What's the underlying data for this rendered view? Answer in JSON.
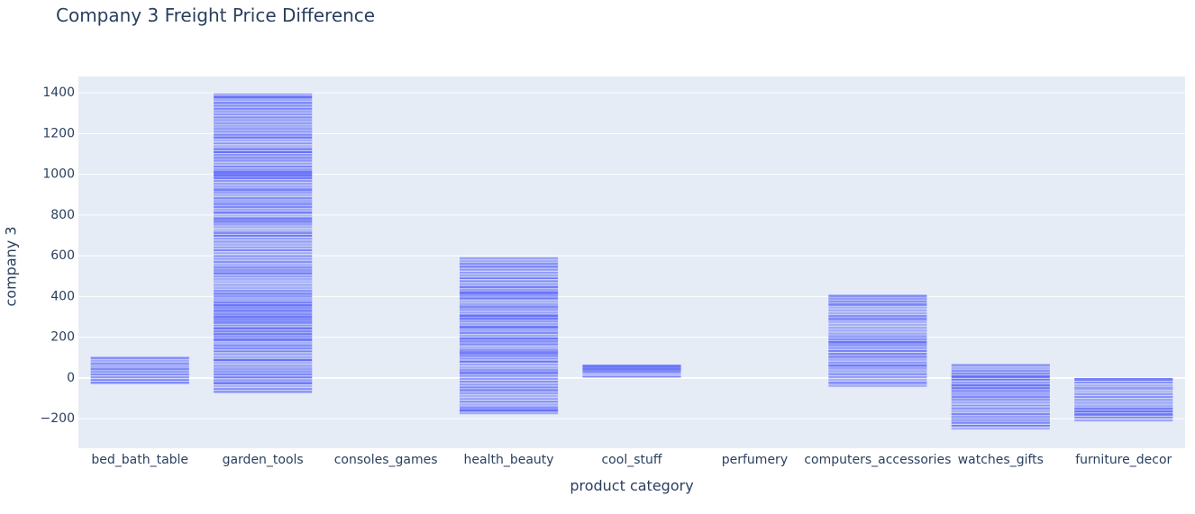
{
  "chart_data": {
    "type": "bar",
    "title": "Company 3 Freight Price Difference",
    "xlabel": "product category",
    "ylabel": "company 3",
    "categories": [
      "bed_bath_table",
      "garden_tools",
      "consoles_games",
      "health_beauty",
      "cool_stuff",
      "perfumery",
      "computers_accessories",
      "watches_gifts",
      "furniture_decor"
    ],
    "ranges": [
      {
        "category": "bed_bath_table",
        "min": -30,
        "max": 105
      },
      {
        "category": "garden_tools",
        "min": -75,
        "max": 1400
      },
      {
        "category": "consoles_games",
        "min": 0,
        "max": 0
      },
      {
        "category": "health_beauty",
        "min": -180,
        "max": 595
      },
      {
        "category": "cool_stuff",
        "min": 0,
        "max": 65
      },
      {
        "category": "perfumery",
        "min": 0,
        "max": 0
      },
      {
        "category": "computers_accessories",
        "min": -45,
        "max": 410
      },
      {
        "category": "watches_gifts",
        "min": -255,
        "max": 70
      },
      {
        "category": "furniture_decor",
        "min": -215,
        "max": 0
      }
    ],
    "ylim": [
      -345,
      1480
    ],
    "yticks": [
      -200,
      0,
      200,
      400,
      600,
      800,
      1000,
      1200,
      1400
    ],
    "grid": true,
    "bar_color": "#636efa",
    "plot_bg": "#e5ecf6"
  }
}
